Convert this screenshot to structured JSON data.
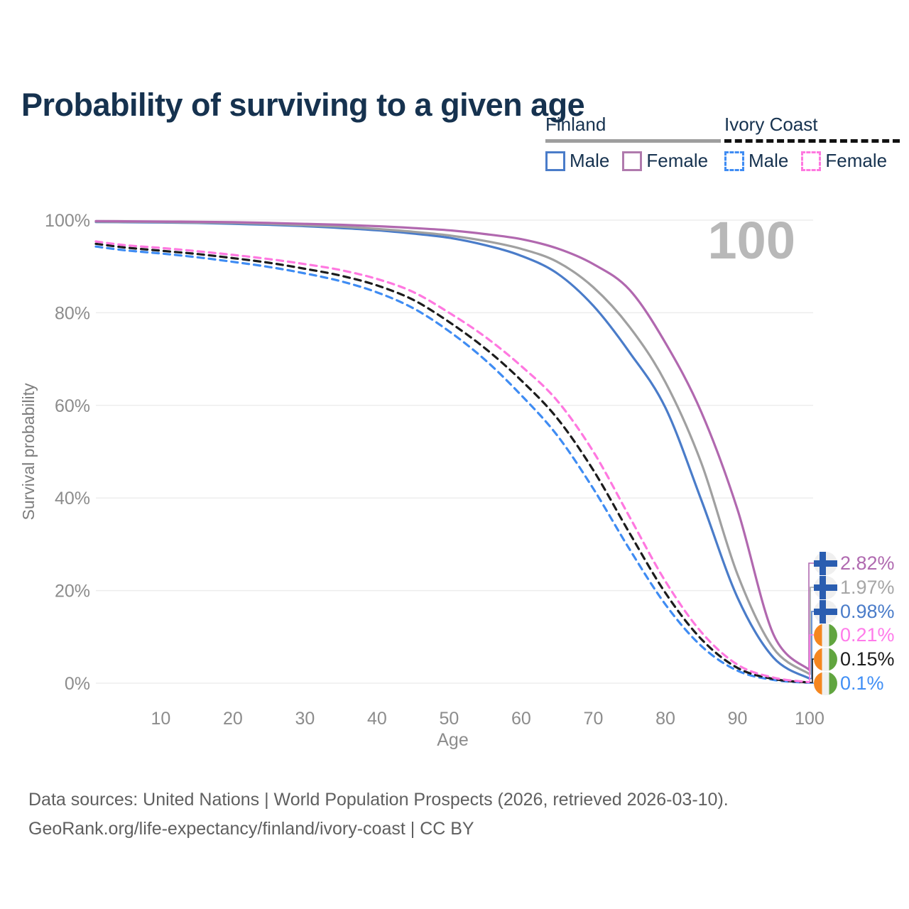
{
  "title": "Probability of surviving to a given age",
  "legend": {
    "finland": {
      "name": "Finland",
      "rule_color": "#9e9e9e",
      "male_label": "Male",
      "female_label": "Female",
      "male_color": "#4a7cc9",
      "female_color": "#b07aad"
    },
    "ivory": {
      "name": "Ivory Coast",
      "rule_color": "#111111",
      "male_label": "Male",
      "female_label": "Female",
      "male_color": "#3f8cf3",
      "female_color": "#ff78e0"
    }
  },
  "flags": {
    "finland": {
      "bg": "#efefef",
      "cross": "#2a5db0"
    },
    "ivory": {
      "left": "#f5861f",
      "mid": "#f0f0f0",
      "right": "#61a53f"
    }
  },
  "chart_data": {
    "type": "line",
    "title": "Probability of surviving to a given age",
    "xlabel": "Age",
    "ylabel": "Survival probability",
    "watermark": "100",
    "xlim": [
      1,
      100
    ],
    "ylim": [
      0,
      100
    ],
    "x_ticks": [
      10,
      20,
      30,
      40,
      50,
      60,
      70,
      80,
      90,
      100
    ],
    "y_ticks": [
      0,
      20,
      40,
      60,
      80,
      100
    ],
    "y_tick_suffix": "%",
    "grid": "horizontal",
    "x": [
      1,
      5,
      10,
      15,
      20,
      25,
      30,
      35,
      40,
      45,
      50,
      55,
      60,
      65,
      70,
      75,
      80,
      85,
      90,
      95,
      100
    ],
    "series": [
      {
        "name": "Finland Male",
        "country": "finland",
        "sex": "male",
        "color": "#4a7cc9",
        "dash": false,
        "values": [
          99.6,
          99.55,
          99.5,
          99.4,
          99.2,
          99.0,
          98.7,
          98.3,
          97.8,
          97.1,
          96.2,
          94.6,
          92.3,
          88.5,
          81.5,
          71.5,
          59.5,
          39.5,
          18.5,
          5.5,
          0.98
        ],
        "end_label": "0.98%",
        "end_color": "#4a7cc9",
        "row": 2
      },
      {
        "name": "Finland Both sexes",
        "country": "finland",
        "sex": "both",
        "color": "#a0a0a0",
        "dash": false,
        "values": [
          99.7,
          99.65,
          99.6,
          99.5,
          99.4,
          99.2,
          98.9,
          98.6,
          98.1,
          97.5,
          96.7,
          95.5,
          93.8,
          91.0,
          85.5,
          77.0,
          65.0,
          47.5,
          23.5,
          7.5,
          1.97
        ],
        "end_label": "1.97%",
        "end_color": "#a6a6a6",
        "row": 1
      },
      {
        "name": "Finland Female",
        "country": "finland",
        "sex": "female",
        "color": "#b168af",
        "dash": false,
        "values": [
          99.8,
          99.75,
          99.7,
          99.65,
          99.55,
          99.4,
          99.2,
          99.0,
          98.7,
          98.3,
          97.8,
          97.0,
          95.9,
          93.9,
          90.5,
          85.0,
          73.5,
          58.5,
          37.5,
          10.5,
          2.82
        ],
        "end_label": "2.82%",
        "end_color": "#b06ab0",
        "row": 0
      },
      {
        "name": "Ivory Coast Male",
        "country": "ivory",
        "sex": "male",
        "color": "#3f8cf3",
        "dash": true,
        "values": [
          94.3,
          93.5,
          92.8,
          92.0,
          91.0,
          89.9,
          88.5,
          86.8,
          84.4,
          81.0,
          76.0,
          69.8,
          62.2,
          53.5,
          42.0,
          29.0,
          17.0,
          8.0,
          2.7,
          0.7,
          0.1
        ],
        "end_label": "0.1%",
        "end_color": "#418ff5",
        "row": 5
      },
      {
        "name": "Ivory Coast Both sexes",
        "country": "ivory",
        "sex": "both",
        "color": "#1c1c1c",
        "dash": true,
        "values": [
          94.9,
          94.1,
          93.4,
          92.7,
          91.8,
          90.8,
          89.5,
          88.0,
          85.9,
          82.8,
          78.0,
          72.3,
          65.4,
          57.2,
          46.0,
          32.5,
          19.5,
          9.5,
          3.3,
          0.9,
          0.15
        ],
        "end_label": "0.15%",
        "end_color": "#1c1c1c",
        "row": 4
      },
      {
        "name": "Ivory Coast Female",
        "country": "ivory",
        "sex": "female",
        "color": "#ff78e0",
        "dash": true,
        "values": [
          95.4,
          94.6,
          94.0,
          93.3,
          92.5,
          91.6,
          90.5,
          89.2,
          87.3,
          84.5,
          80.0,
          74.8,
          68.5,
          61.0,
          50.0,
          36.0,
          22.0,
          11.0,
          4.0,
          1.2,
          0.21
        ],
        "end_label": "0.21%",
        "end_color": "#ff7bea",
        "row": 3
      }
    ]
  },
  "footer": {
    "line1": "Data sources: United Nations | World Population Prospects (2026, retrieved 2026-03-10).",
    "line2": "GeoRank.org/life-expectancy/finland/ivory-coast | CC BY"
  }
}
